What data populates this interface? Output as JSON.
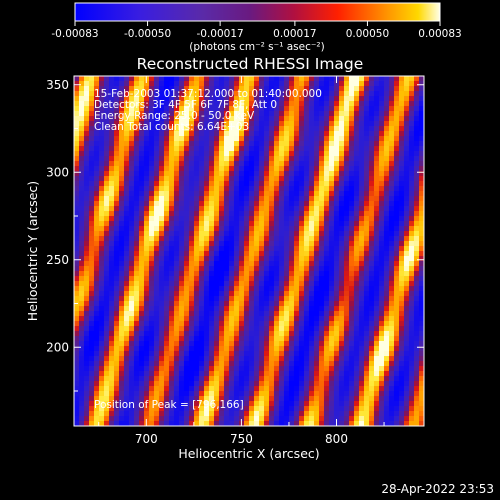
{
  "colorbar": {
    "ticks": [
      "-0.00083",
      "-0.00050",
      "-0.00017",
      "0.00017",
      "0.00050",
      "0.00083"
    ],
    "tick_values": [
      -0.00083,
      -0.0005,
      -0.00017,
      0.00017,
      0.0005,
      0.00083
    ],
    "range": [
      -0.00083,
      0.00083
    ]
  },
  "chart_data": {
    "type": "heatmap",
    "title": "Reconstructed RHESSI Image",
    "units_label": "(photons cm⁻² s⁻¹ asec⁻²)",
    "xlabel": "Heliocentric X (arcsec)",
    "ylabel": "Heliocentric Y (arcsec)",
    "xlim": [
      662,
      846
    ],
    "ylim": [
      155,
      355
    ],
    "x_ticks": [
      700,
      750,
      800
    ],
    "y_ticks": [
      200,
      250,
      300,
      350
    ],
    "annotations": [
      "15-Feb-2003 01:37:12.000 to 01:40:00.000",
      "Detectors: 3F 4F 5F 6F 7F 8F, Att 0",
      "Energy Range: 25.0 - 50.0 keV",
      "Clean    Total counts: 6.64E+03"
    ],
    "peak_text": "Position of Peak = [796,166]",
    "peak": [
      796,
      166
    ],
    "colors": {
      "negative": [
        "#0000ff",
        "#4b20b4",
        "#52219e"
      ],
      "positive": [
        "#6a1a8c",
        "#c01030",
        "#ff2000",
        "#ff8c00",
        "#ffd700",
        "#ffffe0"
      ]
    }
  },
  "timestamp": "28-Apr-2022 23:53"
}
